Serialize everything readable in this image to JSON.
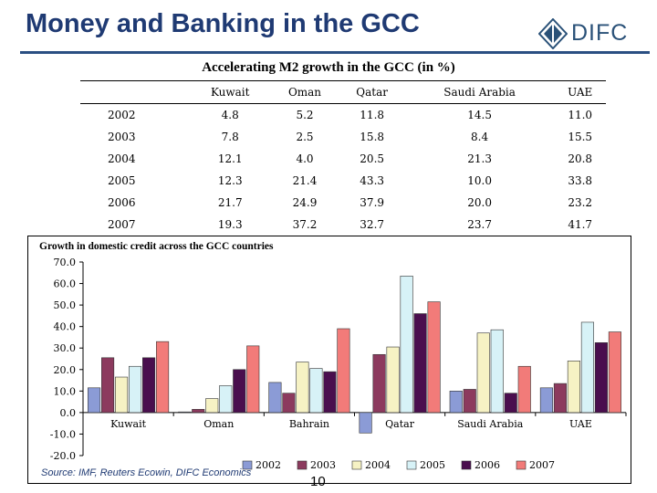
{
  "header": {
    "title": "Money and Banking in the GCC",
    "logo_text": "DIFC"
  },
  "table": {
    "title": "Accelerating M2 growth in the GCC  (in %)",
    "columns": [
      "",
      "Kuwait",
      "Oman",
      "Qatar",
      "Saudi Arabia",
      "UAE"
    ],
    "rows": [
      [
        "2002",
        "4.8",
        "5.2",
        "11.8",
        "14.5",
        "11.0"
      ],
      [
        "2003",
        "7.8",
        "2.5",
        "15.8",
        "8.4",
        "15.5"
      ],
      [
        "2004",
        "12.1",
        "4.0",
        "20.5",
        "21.3",
        "20.8"
      ],
      [
        "2005",
        "12.3",
        "21.4",
        "43.3",
        "10.0",
        "33.8"
      ],
      [
        "2006",
        "21.7",
        "24.9",
        "37.9",
        "20.0",
        "23.2"
      ],
      [
        "2007",
        "19.3",
        "37.2",
        "32.7",
        "23.7",
        "41.7"
      ]
    ]
  },
  "chart_data": {
    "type": "bar",
    "title": "Growth in domestic credit across the GCC countries",
    "categories": [
      "Kuwait",
      "Oman",
      "Bahrain",
      "Qatar",
      "Saudi Arabia",
      "UAE"
    ],
    "ylim": [
      -20,
      70
    ],
    "yticks": [
      "70.0",
      "60.0",
      "50.0",
      "40.0",
      "30.0",
      "20.0",
      "10.0",
      "0.0",
      "-10.0",
      "-20.0"
    ],
    "legend_position": "bottom",
    "series": [
      {
        "name": "2002",
        "color": "#8b9bd6",
        "values": [
          11.5,
          0.3,
          14,
          -9.5,
          10,
          11.5
        ]
      },
      {
        "name": "2003",
        "color": "#8c3a5e",
        "values": [
          25.5,
          1.5,
          9,
          27,
          10.8,
          13.5
        ]
      },
      {
        "name": "2004",
        "color": "#f6f2c4",
        "values": [
          16.5,
          6.5,
          23.5,
          30.5,
          37,
          24
        ]
      },
      {
        "name": "2005",
        "color": "#d7f2f7",
        "values": [
          21.5,
          12.5,
          20.5,
          63.5,
          38.5,
          42
        ]
      },
      {
        "name": "2006",
        "color": "#4a0e4e",
        "values": [
          25.5,
          20,
          19,
          46,
          9,
          32.5
        ]
      },
      {
        "name": "2007",
        "color": "#f27b79",
        "values": [
          33,
          31,
          39,
          51.5,
          21.5,
          37.5
        ]
      }
    ]
  },
  "footer": {
    "source": "Source: IMF, Reuters Ecowin, DIFC Economics",
    "page_number": "10"
  }
}
